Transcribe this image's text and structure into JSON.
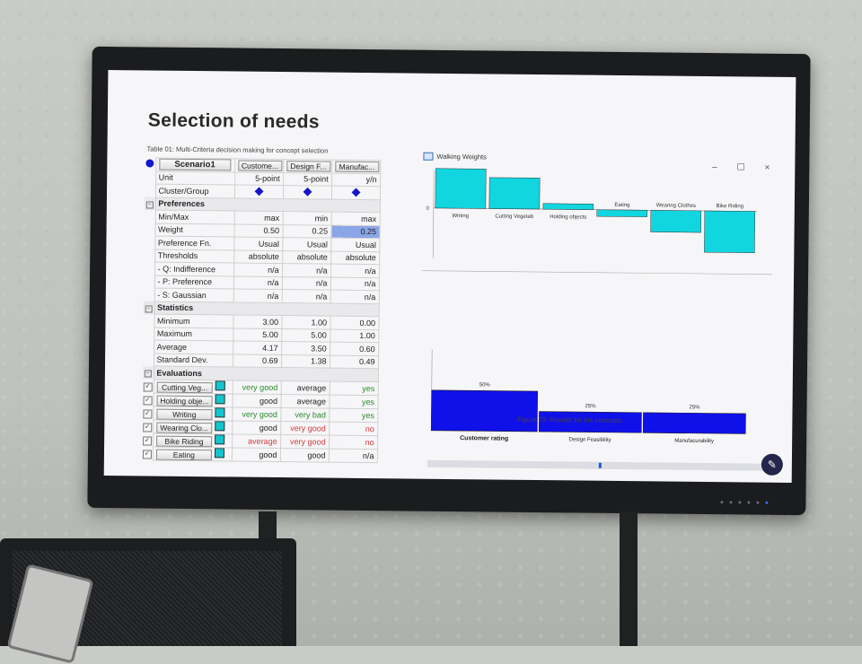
{
  "page": {
    "title": "Selection of needs",
    "table_caption": "Table 01: Multi-Criteria decision making for concept selection",
    "figure_caption": "Figure 03: Results for the concepts"
  },
  "table": {
    "scenario": "Scenario1",
    "columns": [
      "Custome...",
      "Design F...",
      "Manufac..."
    ],
    "rows_top": [
      {
        "label": "Unit",
        "values": [
          "5-point",
          "5-point",
          "y/n"
        ]
      },
      {
        "label": "Cluster/Group",
        "values": [
          "",
          "",
          ""
        ]
      }
    ],
    "preferences_label": "Preferences",
    "preferences": [
      {
        "label": "Min/Max",
        "values": [
          "max",
          "min",
          "max"
        ]
      },
      {
        "label": "Weight",
        "values": [
          "0.50",
          "0.25",
          "0.25"
        ]
      },
      {
        "label": "Preference Fn.",
        "values": [
          "Usual",
          "Usual",
          "Usual"
        ]
      },
      {
        "label": "Thresholds",
        "values": [
          "absolute",
          "absolute",
          "absolute"
        ]
      },
      {
        "label": "- Q: Indifference",
        "values": [
          "n/a",
          "n/a",
          "n/a"
        ]
      },
      {
        "label": "- P: Preference",
        "values": [
          "n/a",
          "n/a",
          "n/a"
        ]
      },
      {
        "label": "- S: Gaussian",
        "values": [
          "n/a",
          "n/a",
          "n/a"
        ]
      }
    ],
    "statistics_label": "Statistics",
    "statistics": [
      {
        "label": "Minimum",
        "values": [
          "3.00",
          "1.00",
          "0.00"
        ]
      },
      {
        "label": "Maximum",
        "values": [
          "5.00",
          "5.00",
          "1.00"
        ]
      },
      {
        "label": "Average",
        "values": [
          "4.17",
          "3.50",
          "0.60"
        ]
      },
      {
        "label": "Standard Dev.",
        "values": [
          "0.69",
          "1.38",
          "0.49"
        ]
      }
    ],
    "evaluations_label": "Evaluations",
    "evaluations": [
      {
        "label": "Cutting Veg...",
        "values": [
          "very good",
          "average",
          "yes"
        ]
      },
      {
        "label": "Holding obje...",
        "values": [
          "good",
          "average",
          "yes"
        ]
      },
      {
        "label": "Writing",
        "values": [
          "very good",
          "very bad",
          "yes"
        ]
      },
      {
        "label": "Wearing Clo...",
        "values": [
          "good",
          "very good",
          "no"
        ]
      },
      {
        "label": "Bike Riding",
        "values": [
          "average",
          "very good",
          "no"
        ]
      },
      {
        "label": "Eating",
        "values": [
          "good",
          "good",
          "n/a"
        ]
      }
    ],
    "colors": {
      "good": "#2a8a2a",
      "bad": "#d23a3a",
      "marker": "#1515cc",
      "swatch": "#12c6cf"
    }
  },
  "chart_window": {
    "title": "Walking Weights",
    "controls": [
      "–",
      "☐",
      "×"
    ]
  },
  "chart_data": [
    {
      "type": "bar",
      "categories": [
        "Writing",
        "Cutting Vegetab",
        "Holding objects",
        "Eating",
        "Wearing Clothes",
        "Bike Riding"
      ],
      "values": [
        0.42,
        0.33,
        0.06,
        -0.07,
        -0.23,
        -0.44
      ],
      "zero_label": "0",
      "color": "#12d6df"
    },
    {
      "type": "bar",
      "categories": [
        "Customer rating",
        "Design Feasibility",
        "Manufacurability"
      ],
      "values": [
        50,
        25,
        25
      ],
      "data_labels": [
        "50%",
        "25%",
        "25%"
      ],
      "color": "#1010e8"
    }
  ]
}
